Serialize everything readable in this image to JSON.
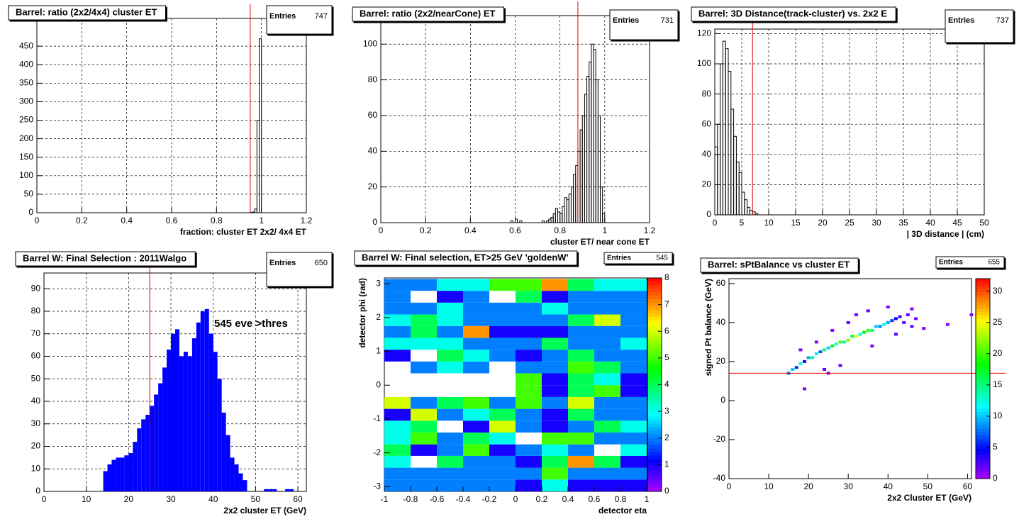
{
  "chart_data": [
    {
      "type": "histogram",
      "title": "Barrel: ratio (2x2/4x4) cluster ET",
      "stats_label": "Entries",
      "entries": 747,
      "x_label": "fraction: cluster ET 2x2/ 4x4 ET",
      "bins": [
        0.95,
        0.96,
        0.97,
        0.98,
        0.99,
        1.0
      ],
      "values": [
        1,
        2,
        10,
        250,
        470
      ],
      "color": "#000000",
      "fill": false,
      "xlim": [
        0,
        1.2
      ],
      "xticks": [
        0,
        0.2,
        0.4,
        0.6,
        0.8,
        1,
        1.2
      ],
      "ylim": [
        0,
        525
      ],
      "yticks": [
        0,
        50,
        100,
        150,
        200,
        250,
        300,
        350,
        400,
        450
      ],
      "grid": true,
      "cut_x": 0.95
    },
    {
      "type": "histogram",
      "title": "Barrel: ratio (2x2/nearCone) ET",
      "stats_label": "Entries",
      "entries": 731,
      "x_label": "cluster ET/ near cone ET",
      "bins": [
        0.58,
        0.59,
        0.6,
        0.61,
        0.62,
        0.63,
        0.64,
        0.65,
        0.66,
        0.67,
        0.68,
        0.69,
        0.7,
        0.71,
        0.72,
        0.73,
        0.74,
        0.75,
        0.76,
        0.77,
        0.78,
        0.79,
        0.8,
        0.81,
        0.82,
        0.83,
        0.84,
        0.85,
        0.86,
        0.87,
        0.88,
        0.89,
        0.9,
        0.91,
        0.92,
        0.93,
        0.94,
        0.95,
        0.96,
        0.97,
        0.98,
        0.99,
        1.0
      ],
      "values": [
        1,
        0,
        2,
        0,
        1,
        0,
        0,
        0,
        0,
        0,
        0,
        0,
        0,
        0,
        1,
        0,
        1,
        2,
        3,
        5,
        8,
        6,
        5,
        9,
        14,
        13,
        16,
        20,
        27,
        32,
        40,
        52,
        60,
        72,
        82,
        90,
        100,
        97,
        80,
        60,
        20,
        5
      ],
      "color": "#000000",
      "fill": false,
      "xlim": [
        0,
        1.2
      ],
      "xticks": [
        0,
        0.2,
        0.4,
        0.6,
        0.8,
        1,
        1.2
      ],
      "ylim": [
        0,
        116
      ],
      "yticks": [
        0,
        20,
        40,
        60,
        80,
        100
      ],
      "grid": true,
      "cut_x": 0.88
    },
    {
      "type": "histogram",
      "title": "Barrel: 3D Distance(track-cluster) vs. 2x2 E",
      "stats_label": "Entries",
      "entries": 737,
      "x_label": "| 3D distance |   (cm)",
      "bins": [
        0,
        0.5,
        1,
        1.5,
        2,
        2.5,
        3,
        3.5,
        4,
        4.5,
        5,
        5.5,
        6,
        6.5,
        7,
        7.5,
        8
      ],
      "values": [
        45,
        60,
        100,
        115,
        110,
        95,
        70,
        52,
        35,
        28,
        15,
        10,
        5,
        3,
        2,
        1
      ],
      "color": "#000000",
      "fill": false,
      "xlim": [
        0,
        50
      ],
      "xticks": [
        0,
        5,
        10,
        15,
        20,
        25,
        30,
        35,
        40,
        45,
        50
      ],
      "ylim": [
        0,
        123
      ],
      "yticks": [
        0,
        20,
        40,
        60,
        80,
        100,
        120
      ],
      "grid": true,
      "cut_x": 7
    },
    {
      "type": "histogram",
      "title": "Barrel W: Final Selection : 2011Walgo",
      "stats_label": "Entries",
      "entries": 650,
      "x_label": "2x2 cluster ET (GeV)",
      "annotation": "545 eve >thres",
      "bins": [
        14,
        15,
        16,
        17,
        18,
        19,
        20,
        21,
        22,
        23,
        24,
        25,
        26,
        27,
        28,
        29,
        30,
        31,
        32,
        33,
        34,
        35,
        36,
        37,
        38,
        39,
        40,
        41,
        42,
        43,
        44,
        45,
        46,
        47,
        48,
        49,
        50,
        51,
        52,
        53,
        54,
        55,
        56,
        57,
        58,
        59,
        60,
        61
      ],
      "values": [
        9,
        12,
        14,
        15,
        15,
        16,
        17,
        22,
        28,
        32,
        34,
        38,
        43,
        48,
        55,
        63,
        70,
        72,
        60,
        62,
        60,
        68,
        75,
        80,
        81,
        70,
        62,
        50,
        35,
        25,
        15,
        12,
        8,
        5,
        0,
        0,
        0,
        0,
        1,
        1,
        1,
        0,
        0,
        1,
        1,
        0,
        0
      ],
      "color": "#0000ff",
      "fill": true,
      "xlim": [
        0,
        62
      ],
      "xticks": [
        0,
        10,
        20,
        30,
        40,
        50,
        60
      ],
      "ylim": [
        0,
        97
      ],
      "yticks": [
        0,
        10,
        20,
        30,
        40,
        50,
        60,
        70,
        80,
        90
      ],
      "grid": true,
      "cut_x": 25
    },
    {
      "type": "heatmap",
      "title": "Barrel W: Final selection, ET>25 GeV 'goldenW'",
      "stats_label": "Entries",
      "entries": 545,
      "x_label": "detector eta",
      "y_label": "detector phi (rad)",
      "xbins": [
        -1,
        -0.8,
        -0.6,
        -0.4,
        -0.2,
        0,
        0.2,
        0.4,
        0.6,
        0.8,
        1
      ],
      "ybins": [
        -3.14,
        -2.79,
        -2.44,
        -2.09,
        -1.75,
        -1.4,
        -1.05,
        -0.7,
        -0.35,
        0,
        0.35,
        0.7,
        1.05,
        1.4,
        1.75,
        2.09,
        2.44,
        2.79,
        3.14
      ],
      "z": [
        [
          2,
          2,
          2,
          2,
          2,
          1,
          3,
          1,
          1,
          1
        ],
        [
          2,
          2,
          2,
          2,
          2,
          2,
          5,
          2,
          2,
          2
        ],
        [
          3,
          0,
          4,
          2,
          2,
          1,
          4,
          7,
          4,
          1
        ],
        [
          4,
          1,
          2,
          5,
          1,
          2,
          3,
          2,
          0,
          3
        ],
        [
          3,
          5,
          2,
          4,
          3,
          0,
          5,
          5,
          2,
          2
        ],
        [
          3,
          4,
          0,
          1,
          6,
          2,
          1,
          2,
          4,
          3
        ],
        [
          1,
          6,
          2,
          3,
          4,
          2,
          1,
          4,
          2,
          2
        ],
        [
          6,
          2,
          4,
          5,
          2,
          5,
          2,
          6,
          2,
          2
        ],
        [
          0,
          0,
          0,
          0,
          0,
          5,
          1,
          4,
          5,
          1
        ],
        [
          0,
          0,
          0,
          0,
          0,
          5,
          1,
          4,
          3,
          1
        ],
        [
          0,
          2,
          3,
          2,
          0,
          2,
          2,
          5,
          4,
          2
        ],
        [
          1,
          0,
          4,
          3,
          2,
          1,
          2,
          4,
          2,
          2
        ],
        [
          3,
          3,
          3,
          2,
          2,
          2,
          4,
          2,
          2,
          3
        ],
        [
          2,
          4,
          2,
          7,
          1,
          1,
          1,
          2,
          2,
          2
        ],
        [
          3,
          4,
          3,
          2,
          2,
          2,
          2,
          4,
          6,
          2
        ],
        [
          2,
          2,
          3,
          2,
          2,
          2,
          3,
          2,
          2,
          2
        ],
        [
          2,
          0,
          1,
          2,
          0,
          4,
          1,
          2,
          2,
          2
        ],
        [
          2,
          2,
          3,
          3,
          5,
          5,
          7,
          4,
          3,
          3
        ]
      ],
      "xlim": [
        -1,
        1
      ],
      "xticks": [
        -1,
        -0.8,
        -0.6,
        -0.4,
        -0.2,
        0,
        0.2,
        0.4,
        0.6,
        0.8,
        1
      ],
      "ylim": [
        -3.14,
        3.17
      ],
      "yticks": [
        -3,
        -2,
        -1,
        0,
        1,
        2,
        3
      ],
      "zlim": [
        0,
        8
      ],
      "zticks": [
        0,
        1,
        2,
        3,
        4,
        5,
        6,
        7,
        8
      ],
      "grid": false
    },
    {
      "type": "scatter",
      "title": "Barrel: sPtBalance vs cluster ET",
      "stats_label": "Entries",
      "entries": 655,
      "x_label": "2x2 Cluster ET (GeV)",
      "y_label": "signed Pt balance (GeV)",
      "x": [
        15,
        16,
        17,
        18,
        19,
        20,
        21,
        22,
        23,
        24,
        25,
        26,
        27,
        28,
        29,
        30,
        31,
        32,
        33,
        34,
        35,
        36,
        37,
        38,
        39,
        40,
        41,
        42,
        43,
        44,
        45,
        46,
        47,
        49,
        55,
        61,
        19,
        25,
        28,
        32,
        22,
        18,
        35,
        40,
        46,
        26,
        30,
        24,
        36,
        42
      ],
      "y": [
        14,
        16,
        17,
        19,
        20,
        22,
        22,
        24,
        25,
        26,
        27,
        28,
        29,
        30,
        30,
        31,
        33,
        33,
        34,
        35,
        36,
        36,
        38,
        38,
        39,
        40,
        41,
        42,
        43,
        40,
        44,
        38,
        42,
        37,
        39,
        44,
        6,
        14,
        18,
        44,
        30,
        26,
        46,
        48,
        47,
        36,
        40,
        16,
        28,
        34
      ],
      "z": [
        8,
        10,
        6,
        12,
        5,
        9,
        14,
        11,
        7,
        15,
        10,
        18,
        12,
        20,
        14,
        22,
        16,
        24,
        12,
        18,
        20,
        15,
        10,
        8,
        12,
        9,
        6,
        4,
        3,
        2,
        2,
        2,
        1,
        1,
        1,
        1,
        1,
        1,
        2,
        2,
        1,
        1,
        2,
        1,
        1,
        1,
        2,
        2,
        1,
        2
      ],
      "xlim": [
        0,
        61
      ],
      "xticks": [
        0,
        10,
        20,
        30,
        40,
        50,
        60
      ],
      "ylim": [
        -40,
        62.5
      ],
      "yticks": [
        -40,
        -20,
        0,
        20,
        40,
        60
      ],
      "zlim": [
        0,
        32
      ],
      "zticks": [
        0,
        5,
        10,
        15,
        20,
        25,
        30
      ],
      "grid": false,
      "cut_y": 14
    }
  ]
}
